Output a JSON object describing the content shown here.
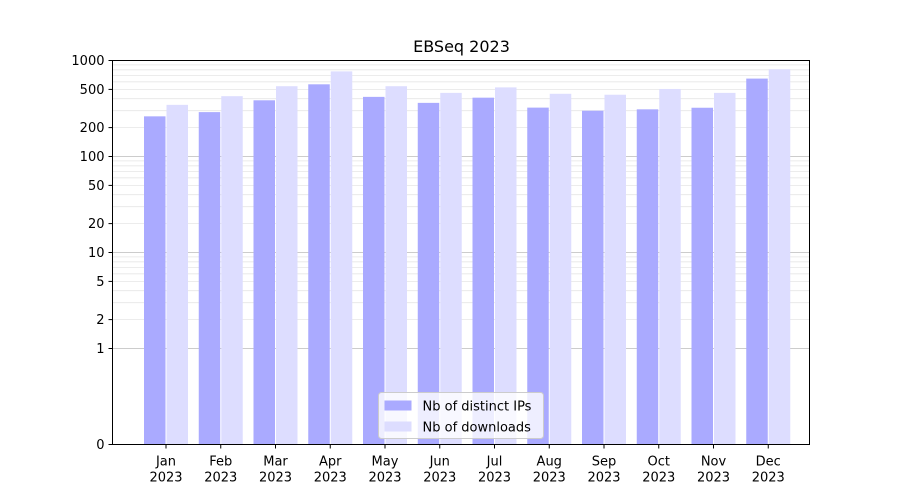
{
  "chart_data": {
    "type": "bar",
    "title": "EBSeq 2023",
    "xlabel": "",
    "ylabel": "",
    "y_scale": "symlog",
    "ylim": [
      0,
      1000
    ],
    "y_ticks": [
      0,
      1,
      2,
      5,
      10,
      20,
      50,
      100,
      200,
      500,
      1000
    ],
    "y_tick_labels": [
      "0",
      "1",
      "2",
      "5",
      "10",
      "20",
      "50",
      "100",
      "200",
      "500",
      "1000"
    ],
    "grid": true,
    "legend_position": "bottom-center",
    "categories": [
      [
        "Jan",
        "2023"
      ],
      [
        "Feb",
        "2023"
      ],
      [
        "Mar",
        "2023"
      ],
      [
        "Apr",
        "2023"
      ],
      [
        "May",
        "2023"
      ],
      [
        "Jun",
        "2023"
      ],
      [
        "Jul",
        "2023"
      ],
      [
        "Aug",
        "2023"
      ],
      [
        "Sep",
        "2023"
      ],
      [
        "Oct",
        "2023"
      ],
      [
        "Nov",
        "2023"
      ],
      [
        "Dec",
        "2023"
      ]
    ],
    "series": [
      {
        "name": "Nb of distinct IPs",
        "color": "#aaaaff",
        "values": [
          262,
          290,
          385,
          565,
          418,
          362,
          410,
          323,
          300,
          310,
          322,
          648
        ]
      },
      {
        "name": "Nb of downloads",
        "color": "#ddddff",
        "values": [
          345,
          425,
          540,
          770,
          540,
          460,
          525,
          450,
          440,
          505,
          460,
          810
        ]
      }
    ]
  }
}
